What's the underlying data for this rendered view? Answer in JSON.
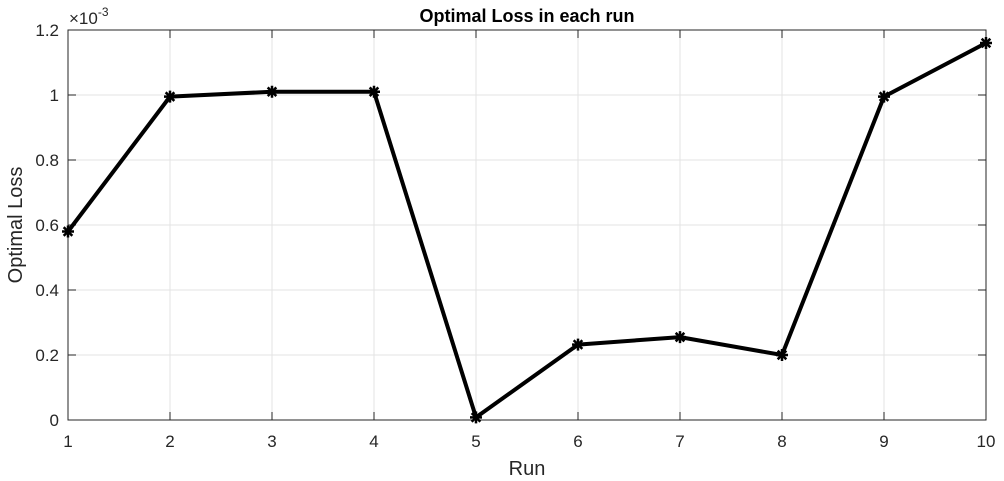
{
  "chart_data": {
    "type": "line",
    "title": "Optimal Loss in each run",
    "xlabel": "Run",
    "ylabel": "Optimal Loss",
    "y_exponent_base": "×10",
    "y_exponent_power": "-3",
    "x": [
      1,
      2,
      3,
      4,
      5,
      6,
      7,
      8,
      9,
      10
    ],
    "xlim": [
      1,
      10
    ],
    "ylim": [
      0,
      1.2
    ],
    "x_ticks": [
      "1",
      "2",
      "3",
      "4",
      "5",
      "6",
      "7",
      "8",
      "9",
      "10"
    ],
    "y_ticks": [
      "0",
      "0.2",
      "0.4",
      "0.6",
      "0.8",
      "1",
      "1.2"
    ],
    "grid": true,
    "series": [
      {
        "values": [
          0.58,
          0.995,
          1.01,
          1.01,
          0.008,
          0.232,
          0.255,
          0.2,
          0.995,
          1.16
        ],
        "color": "#000000",
        "marker": "asterisk"
      }
    ]
  }
}
